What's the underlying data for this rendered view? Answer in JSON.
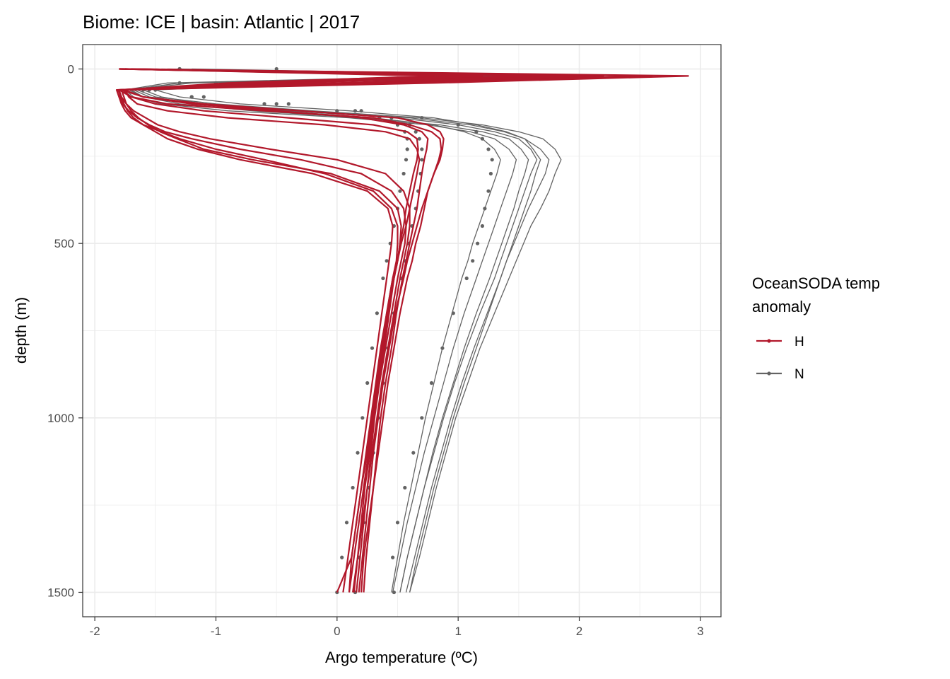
{
  "chart_data": {
    "type": "line",
    "title": "Biome: ICE | basin: Atlantic  |  2017",
    "xlabel": "Argo temperature (ºC)",
    "ylabel": "depth (m)",
    "xlim": [
      -2.1,
      3.17
    ],
    "ylim": [
      1570,
      -70
    ],
    "y_reversed": true,
    "x_ticks": [
      -2,
      -1,
      0,
      1,
      2,
      3
    ],
    "y_ticks": [
      0,
      500,
      1000,
      1500
    ],
    "grid": true,
    "legend": {
      "title": "OceanSODA temp anomaly",
      "title_lines": [
        "OceanSODA temp",
        "anomaly"
      ],
      "position": "right",
      "entries": [
        {
          "label": "H",
          "color": "#B2182B"
        },
        {
          "label": "N",
          "color": "#636363"
        }
      ]
    },
    "profile_depths": [
      0,
      20,
      40,
      60,
      80,
      100,
      120,
      140,
      160,
      180,
      200,
      230,
      260,
      300,
      350,
      400,
      450,
      500,
      550,
      600,
      700,
      800,
      900,
      1000,
      1100,
      1200,
      1300,
      1400,
      1500
    ],
    "series": [
      {
        "name": "H",
        "color": "#B2182B",
        "line_width": 2.2,
        "profiles": [
          [
            -1.8,
            2.9,
            0.8,
            -1.78,
            -1.6,
            -1.1,
            -0.3,
            0.5,
            0.75,
            0.85,
            0.88,
            0.87,
            0.85,
            0.8,
            0.75,
            0.72,
            0.69,
            0.65,
            0.62,
            0.58,
            0.52,
            0.47,
            0.42,
            0.38,
            0.34,
            0.3,
            0.26,
            0.22,
            0.2
          ],
          [
            -1.75,
            2.6,
            0.4,
            -1.8,
            -1.7,
            -1.4,
            -0.6,
            0.3,
            0.6,
            0.78,
            0.85,
            0.86,
            0.84,
            0.8,
            0.75,
            0.7,
            0.66,
            0.62,
            0.58,
            0.55,
            0.48,
            0.43,
            0.38,
            0.34,
            0.3,
            0.27,
            0.24,
            0.21,
            0.18
          ],
          [
            -1.7,
            2.2,
            0.2,
            -1.75,
            -1.72,
            -1.65,
            -1.4,
            -0.9,
            -0.1,
            0.4,
            0.6,
            0.66,
            0.68,
            0.66,
            0.63,
            0.6,
            0.57,
            0.53,
            0.5,
            0.46,
            0.41,
            0.36,
            0.32,
            0.28,
            0.24,
            0.2,
            0.16,
            0.12,
            0.1
          ],
          [
            -1.8,
            1.5,
            -0.5,
            -1.82,
            -1.8,
            -1.78,
            -1.75,
            -1.7,
            -1.6,
            -1.45,
            -1.3,
            -1.0,
            -0.6,
            -0.1,
            0.3,
            0.45,
            0.5,
            0.5,
            0.49,
            0.46,
            0.41,
            0.37,
            0.33,
            0.29,
            0.25,
            0.2,
            0.16,
            0.12,
            0.0
          ],
          [
            -1.78,
            1.0,
            -0.8,
            -1.8,
            -1.79,
            -1.77,
            -1.72,
            -1.65,
            -1.55,
            -1.42,
            -1.2,
            -0.8,
            -0.3,
            0.2,
            0.45,
            0.55,
            0.57,
            0.56,
            0.53,
            0.5,
            0.45,
            0.4,
            0.35,
            0.3,
            0.26,
            0.22,
            0.18,
            0.14,
            0.1
          ],
          [
            -1.79,
            1.8,
            0.0,
            -1.81,
            -1.78,
            -1.74,
            -1.68,
            -1.58,
            -1.48,
            -1.3,
            -1.05,
            -0.55,
            0.0,
            0.4,
            0.55,
            0.6,
            0.6,
            0.58,
            0.55,
            0.52,
            0.47,
            0.42,
            0.37,
            0.33,
            0.29,
            0.25,
            0.21,
            0.17,
            0.13
          ],
          [
            -1.77,
            2.0,
            0.3,
            -1.76,
            -1.6,
            -1.2,
            -0.5,
            0.2,
            0.55,
            0.7,
            0.75,
            0.74,
            0.72,
            0.7,
            0.68,
            0.66,
            0.63,
            0.6,
            0.57,
            0.54,
            0.49,
            0.45,
            0.4,
            0.36,
            0.33,
            0.3,
            0.27,
            0.24,
            0.22
          ],
          [
            -1.8,
            1.2,
            -0.3,
            -1.8,
            -1.78,
            -1.76,
            -1.73,
            -1.68,
            -1.6,
            -1.5,
            -1.4,
            -1.15,
            -0.8,
            -0.2,
            0.25,
            0.42,
            0.46,
            0.45,
            0.43,
            0.41,
            0.37,
            0.33,
            0.29,
            0.25,
            0.21,
            0.17,
            0.13,
            0.09,
            0.05
          ],
          [
            -1.76,
            1.6,
            0.1,
            -1.77,
            -1.7,
            -1.5,
            -1.1,
            -0.4,
            0.3,
            0.58,
            0.66,
            0.67,
            0.66,
            0.63,
            0.6,
            0.57,
            0.55,
            0.52,
            0.5,
            0.47,
            0.43,
            0.39,
            0.35,
            0.31,
            0.28,
            0.25,
            0.22,
            0.19,
            0.16
          ],
          [
            -1.75,
            0.8,
            -0.9,
            -1.78,
            -1.76,
            -1.74,
            -1.7,
            -1.64,
            -1.56,
            -1.46,
            -1.32,
            -1.1,
            -0.7,
            -0.05,
            0.35,
            0.5,
            0.53,
            0.52,
            0.5,
            0.47,
            0.42,
            0.38,
            0.34,
            0.3,
            0.27,
            0.23,
            0.2,
            0.17,
            0.14
          ]
        ]
      },
      {
        "name": "N",
        "color": "#636363",
        "line_width": 1.3,
        "profiles": [
          [
            -1.5,
            1.4,
            -1.2,
            -1.7,
            -1.6,
            -1.2,
            -0.4,
            0.5,
            1.0,
            1.3,
            1.5,
            1.6,
            1.65,
            1.6,
            1.55,
            1.5,
            1.45,
            1.4,
            1.35,
            1.3,
            1.18,
            1.07,
            0.97,
            0.88,
            0.8,
            0.72,
            0.65,
            0.58,
            0.52
          ],
          [
            -1.4,
            1.9,
            -0.5,
            -1.65,
            -1.5,
            -1.0,
            -0.2,
            0.7,
            1.2,
            1.5,
            1.7,
            1.8,
            1.85,
            1.8,
            1.75,
            1.68,
            1.6,
            1.54,
            1.48,
            1.42,
            1.3,
            1.18,
            1.08,
            0.98,
            0.9,
            0.82,
            0.75,
            0.68,
            0.6
          ],
          [
            -1.6,
            1.0,
            -1.4,
            -1.75,
            -1.68,
            -1.45,
            -0.9,
            0.1,
            0.75,
            1.1,
            1.3,
            1.42,
            1.48,
            1.45,
            1.4,
            1.35,
            1.3,
            1.25,
            1.2,
            1.15,
            1.05,
            0.96,
            0.88,
            0.8,
            0.72,
            0.65,
            0.58,
            0.52,
            0.46
          ],
          [
            -1.2,
            2.1,
            0.0,
            -1.5,
            -1.3,
            -0.8,
            0.1,
            0.8,
            1.15,
            1.4,
            1.55,
            1.68,
            1.75,
            1.72,
            1.65,
            1.58,
            1.52,
            1.46,
            1.4,
            1.35,
            1.24,
            1.13,
            1.03,
            0.94,
            0.86,
            0.78,
            0.71,
            0.64,
            0.57
          ],
          [
            -1.3,
            1.6,
            -0.9,
            -1.6,
            -1.45,
            -1.1,
            -0.5,
            0.3,
            0.8,
            1.05,
            1.2,
            1.3,
            1.35,
            1.32,
            1.27,
            1.22,
            1.17,
            1.12,
            1.08,
            1.03,
            0.95,
            0.87,
            0.8,
            0.73,
            0.67,
            0.61,
            0.55,
            0.5,
            0.45
          ],
          [
            -1.55,
            1.2,
            -1.3,
            -1.72,
            -1.6,
            -1.3,
            -0.7,
            0.2,
            0.85,
            1.2,
            1.42,
            1.52,
            1.58,
            1.55,
            1.5,
            1.46,
            1.41,
            1.36,
            1.31,
            1.26,
            1.15,
            1.05,
            0.96,
            0.87,
            0.79,
            0.72,
            0.65,
            0.58,
            0.52
          ],
          [
            -1.45,
            1.7,
            -0.7,
            -1.68,
            -1.55,
            -1.15,
            -0.35,
            0.6,
            1.1,
            1.38,
            1.55,
            1.62,
            1.68,
            1.64,
            1.6,
            1.55,
            1.5,
            1.45,
            1.4,
            1.35,
            1.25,
            1.15,
            1.05,
            0.96,
            0.88,
            0.8,
            0.73,
            0.66,
            0.6
          ]
        ]
      },
      {
        "name": "N",
        "color": "#636363",
        "points": true,
        "profiles": [
          [
            -1.3,
            1.7,
            -1.3,
            -1.6,
            -1.2,
            -0.5,
            0.2,
            0.7,
            1.0,
            1.15,
            1.2,
            1.25,
            1.28,
            1.27,
            1.25,
            1.22,
            1.2,
            1.16,
            1.12,
            1.07,
            0.96,
            0.87,
            0.78,
            0.7,
            0.63,
            0.56,
            0.5,
            0.46,
            0.47
          ],
          [
            -0.5,
            1.7,
            -0.9,
            -1.5,
            -1.1,
            -0.4,
            0.15,
            0.45,
            0.6,
            0.65,
            0.68,
            0.7,
            0.7,
            0.69,
            0.67,
            0.65,
            0.62,
            0.59,
            0.56,
            0.53,
            0.47,
            0.42,
            0.38,
            0.34,
            0.3,
            0.26,
            0.22,
            0.18,
            0.15
          ],
          [
            -1.3,
            1.6,
            -1.0,
            -1.55,
            -1.2,
            -0.6,
            0.0,
            0.35,
            0.5,
            0.56,
            0.58,
            0.58,
            0.57,
            0.55,
            0.52,
            0.5,
            0.47,
            0.44,
            0.41,
            0.38,
            0.33,
            0.29,
            0.25,
            0.21,
            0.17,
            0.13,
            0.08,
            0.04,
            0.0
          ]
        ]
      }
    ]
  }
}
